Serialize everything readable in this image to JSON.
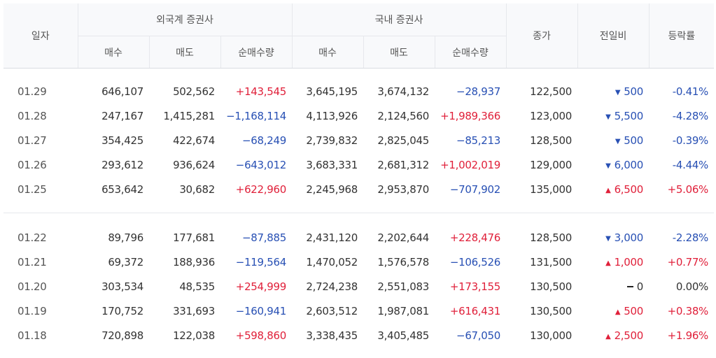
{
  "header": {
    "date": "일자",
    "foreign_group": "외국계 증권사",
    "domestic_group": "국내 증권사",
    "close": "종가",
    "change": "전일비",
    "rate": "등락률",
    "buy": "매수",
    "sell": "매도",
    "net": "순매수량"
  },
  "icons": {
    "up": "triangle-up-icon",
    "down": "triangle-down-icon",
    "flat": "dash-icon"
  },
  "colors": {
    "up": "#e0203a",
    "down": "#2850b4",
    "header_bg": "#f8f9fb"
  },
  "groups": [
    {
      "rows": [
        {
          "date": "01.29",
          "f_buy": "646,107",
          "f_sell": "502,562",
          "f_net": "+143,545",
          "f_dir": "up",
          "d_buy": "3,645,195",
          "d_sell": "3,674,132",
          "d_net": "−28,937",
          "d_dir": "down",
          "close": "122,500",
          "chg": "500",
          "chg_dir": "down",
          "rate": "-0.41%"
        },
        {
          "date": "01.28",
          "f_buy": "247,167",
          "f_sell": "1,415,281",
          "f_net": "−1,168,114",
          "f_dir": "down",
          "d_buy": "4,113,926",
          "d_sell": "2,124,560",
          "d_net": "+1,989,366",
          "d_dir": "up",
          "close": "123,000",
          "chg": "5,500",
          "chg_dir": "down",
          "rate": "-4.28%"
        },
        {
          "date": "01.27",
          "f_buy": "354,425",
          "f_sell": "422,674",
          "f_net": "−68,249",
          "f_dir": "down",
          "d_buy": "2,739,832",
          "d_sell": "2,825,045",
          "d_net": "−85,213",
          "d_dir": "down",
          "close": "128,500",
          "chg": "500",
          "chg_dir": "down",
          "rate": "-0.39%"
        },
        {
          "date": "01.26",
          "f_buy": "293,612",
          "f_sell": "936,624",
          "f_net": "−643,012",
          "f_dir": "down",
          "d_buy": "3,683,331",
          "d_sell": "2,681,312",
          "d_net": "+1,002,019",
          "d_dir": "up",
          "close": "129,000",
          "chg": "6,000",
          "chg_dir": "down",
          "rate": "-4.44%"
        },
        {
          "date": "01.25",
          "f_buy": "653,642",
          "f_sell": "30,682",
          "f_net": "+622,960",
          "f_dir": "up",
          "d_buy": "2,245,968",
          "d_sell": "2,953,870",
          "d_net": "−707,902",
          "d_dir": "down",
          "close": "135,000",
          "chg": "6,500",
          "chg_dir": "up",
          "rate": "+5.06%"
        }
      ]
    },
    {
      "rows": [
        {
          "date": "01.22",
          "f_buy": "89,796",
          "f_sell": "177,681",
          "f_net": "−87,885",
          "f_dir": "down",
          "d_buy": "2,431,120",
          "d_sell": "2,202,644",
          "d_net": "+228,476",
          "d_dir": "up",
          "close": "128,500",
          "chg": "3,000",
          "chg_dir": "down",
          "rate": "-2.28%"
        },
        {
          "date": "01.21",
          "f_buy": "69,372",
          "f_sell": "188,936",
          "f_net": "−119,564",
          "f_dir": "down",
          "d_buy": "1,470,052",
          "d_sell": "1,576,578",
          "d_net": "−106,526",
          "d_dir": "down",
          "close": "131,500",
          "chg": "1,000",
          "chg_dir": "up",
          "rate": "+0.77%"
        },
        {
          "date": "01.20",
          "f_buy": "303,534",
          "f_sell": "48,535",
          "f_net": "+254,999",
          "f_dir": "up",
          "d_buy": "2,724,238",
          "d_sell": "2,551,083",
          "d_net": "+173,155",
          "d_dir": "up",
          "close": "130,500",
          "chg": "0",
          "chg_dir": "flat",
          "rate": "0.00%"
        },
        {
          "date": "01.19",
          "f_buy": "170,752",
          "f_sell": "331,693",
          "f_net": "−160,941",
          "f_dir": "down",
          "d_buy": "2,603,512",
          "d_sell": "1,987,081",
          "d_net": "+616,431",
          "d_dir": "up",
          "close": "130,500",
          "chg": "500",
          "chg_dir": "up",
          "rate": "+0.38%"
        },
        {
          "date": "01.18",
          "f_buy": "720,898",
          "f_sell": "122,038",
          "f_net": "+598,860",
          "f_dir": "up",
          "d_buy": "3,338,435",
          "d_sell": "3,405,485",
          "d_net": "−67,050",
          "d_dir": "down",
          "close": "130,000",
          "chg": "2,500",
          "chg_dir": "up",
          "rate": "+1.96%"
        }
      ]
    }
  ]
}
